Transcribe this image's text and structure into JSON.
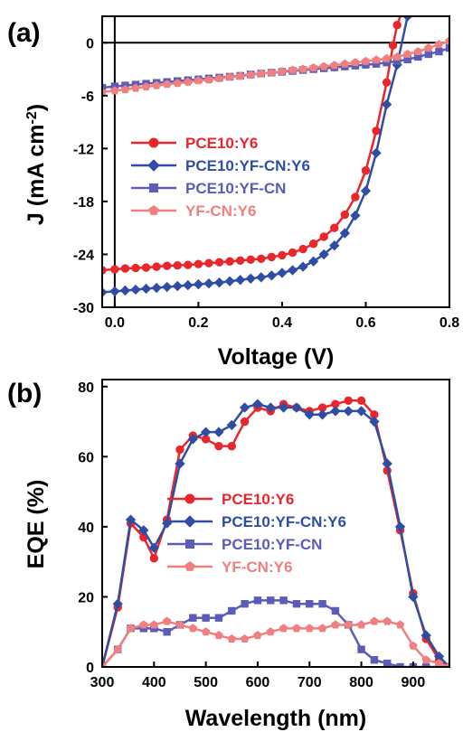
{
  "chart_data": [
    {
      "panel_label": "(a)",
      "type": "line",
      "xlabel": "Voltage (V)",
      "ylabel_main": "J (mA cm",
      "ylabel_sup": "-2",
      "ylabel_end": ")",
      "xlim": [
        -0.03,
        0.8
      ],
      "ylim": [
        -30,
        3
      ],
      "xticks": [
        0.0,
        0.2,
        0.4,
        0.6,
        0.8
      ],
      "xtick_labels": [
        "0.0",
        "0.2",
        "0.4",
        "0.6",
        "0.8"
      ],
      "yticks": [
        0,
        -6,
        -12,
        -18,
        -24,
        -30
      ],
      "ytick_labels": [
        "0",
        "-6",
        "-12",
        "-18",
        "-24",
        "-30"
      ],
      "zero_lines": true,
      "legend_position": "center-left",
      "series": [
        {
          "name": "PCE10:Y6",
          "color": "#e8262b",
          "marker": "circle",
          "x": [
            -0.03,
            0.0,
            0.025,
            0.05,
            0.075,
            0.1,
            0.125,
            0.15,
            0.175,
            0.2,
            0.225,
            0.25,
            0.275,
            0.3,
            0.325,
            0.35,
            0.375,
            0.4,
            0.425,
            0.45,
            0.475,
            0.5,
            0.525,
            0.55,
            0.575,
            0.6,
            0.625,
            0.65,
            0.665,
            0.675,
            0.69
          ],
          "y": [
            -25.8,
            -25.7,
            -25.6,
            -25.55,
            -25.5,
            -25.4,
            -25.3,
            -25.25,
            -25.2,
            -25.1,
            -25.0,
            -24.9,
            -24.8,
            -24.7,
            -24.6,
            -24.5,
            -24.3,
            -24.1,
            -23.8,
            -23.4,
            -22.8,
            -22.0,
            -21.0,
            -19.5,
            -17.5,
            -14.5,
            -10.0,
            -4.5,
            -0.3,
            2.0,
            4.0
          ]
        },
        {
          "name": "PCE10:YF-CN:Y6",
          "color": "#2f4ea3",
          "marker": "diamond",
          "x": [
            -0.03,
            0.0,
            0.025,
            0.05,
            0.075,
            0.1,
            0.125,
            0.15,
            0.175,
            0.2,
            0.225,
            0.25,
            0.275,
            0.3,
            0.325,
            0.35,
            0.375,
            0.4,
            0.425,
            0.45,
            0.475,
            0.5,
            0.525,
            0.55,
            0.575,
            0.6,
            0.625,
            0.65,
            0.675,
            0.7
          ],
          "y": [
            -28.3,
            -28.2,
            -28.1,
            -28.0,
            -27.9,
            -27.8,
            -27.7,
            -27.6,
            -27.5,
            -27.4,
            -27.3,
            -27.2,
            -27.05,
            -26.9,
            -26.75,
            -26.6,
            -26.4,
            -26.1,
            -25.8,
            -25.4,
            -24.8,
            -24.0,
            -23.0,
            -21.6,
            -19.6,
            -16.8,
            -12.5,
            -7.0,
            -2.5,
            3.0
          ]
        },
        {
          "name": "PCE10:YF-CN",
          "color": "#5b5bb8",
          "marker": "square",
          "x": [
            -0.03,
            0.0,
            0.025,
            0.05,
            0.075,
            0.1,
            0.125,
            0.15,
            0.175,
            0.2,
            0.225,
            0.25,
            0.275,
            0.3,
            0.325,
            0.35,
            0.375,
            0.4,
            0.425,
            0.45,
            0.475,
            0.5,
            0.525,
            0.55,
            0.575,
            0.6,
            0.625,
            0.65,
            0.675,
            0.7,
            0.725,
            0.75,
            0.775,
            0.8
          ],
          "y": [
            -5.1,
            -4.95,
            -4.85,
            -4.75,
            -4.65,
            -4.55,
            -4.45,
            -4.35,
            -4.25,
            -4.15,
            -4.05,
            -3.95,
            -3.85,
            -3.75,
            -3.6,
            -3.5,
            -3.4,
            -3.3,
            -3.2,
            -3.1,
            -3.0,
            -2.9,
            -2.8,
            -2.7,
            -2.6,
            -2.5,
            -2.4,
            -2.25,
            -2.1,
            -1.9,
            -1.6,
            -1.3,
            -1.0,
            -0.6
          ]
        },
        {
          "name": "YF-CN:Y6",
          "color": "#f07f7f",
          "marker": "pentagon",
          "x": [
            -0.03,
            0.0,
            0.025,
            0.05,
            0.075,
            0.1,
            0.125,
            0.15,
            0.175,
            0.2,
            0.225,
            0.25,
            0.275,
            0.3,
            0.325,
            0.35,
            0.375,
            0.4,
            0.425,
            0.45,
            0.475,
            0.5,
            0.525,
            0.55,
            0.575,
            0.6,
            0.625,
            0.65,
            0.675,
            0.7,
            0.725,
            0.75,
            0.775,
            0.8
          ],
          "y": [
            -5.6,
            -5.45,
            -5.3,
            -5.15,
            -5.0,
            -4.85,
            -4.7,
            -4.6,
            -4.45,
            -4.3,
            -4.2,
            -4.05,
            -3.9,
            -3.8,
            -3.65,
            -3.5,
            -3.4,
            -3.25,
            -3.1,
            -3.0,
            -2.85,
            -2.7,
            -2.55,
            -2.4,
            -2.25,
            -2.1,
            -1.95,
            -1.8,
            -1.6,
            -1.3,
            -1.0,
            -0.6,
            -0.2,
            0.2
          ]
        }
      ]
    },
    {
      "panel_label": "(b)",
      "type": "line",
      "xlabel": "Wavelength (nm)",
      "ylabel_main": "EQE (%)",
      "xlim": [
        300,
        970
      ],
      "ylim": [
        0,
        82
      ],
      "xticks": [
        300,
        400,
        500,
        600,
        700,
        800,
        900
      ],
      "xtick_labels": [
        "300",
        "400",
        "500",
        "600",
        "700",
        "800",
        "900"
      ],
      "yticks": [
        0,
        20,
        40,
        60,
        80
      ],
      "ytick_labels": [
        "0",
        "20",
        "40",
        "60",
        "80"
      ],
      "legend_position": "center-left",
      "series": [
        {
          "name": "PCE10:Y6",
          "color": "#e8262b",
          "marker": "circle",
          "x": [
            300,
            330,
            355,
            380,
            400,
            425,
            450,
            475,
            500,
            525,
            550,
            575,
            600,
            625,
            650,
            675,
            700,
            725,
            750,
            775,
            800,
            825,
            850,
            875,
            900,
            925,
            950,
            970
          ],
          "y": [
            0,
            17,
            41,
            37,
            31,
            42,
            62,
            66,
            65,
            63,
            63,
            70,
            74,
            73,
            75,
            74,
            73,
            74,
            75,
            76,
            76,
            72,
            56,
            39,
            21,
            8,
            2,
            0
          ]
        },
        {
          "name": "PCE10:YF-CN:Y6",
          "color": "#2f4ea3",
          "marker": "diamond",
          "x": [
            300,
            330,
            355,
            380,
            400,
            425,
            450,
            475,
            500,
            525,
            550,
            575,
            600,
            625,
            650,
            675,
            700,
            725,
            750,
            775,
            800,
            825,
            850,
            875,
            900,
            925,
            950,
            970
          ],
          "y": [
            0,
            18,
            42,
            39,
            34,
            41,
            58,
            65,
            67,
            67,
            69,
            74,
            75,
            74,
            74,
            74,
            72,
            72,
            73,
            73,
            73,
            70,
            58,
            40,
            20,
            9,
            3,
            0
          ]
        },
        {
          "name": "PCE10:YF-CN",
          "color": "#5b5bb8",
          "marker": "square",
          "x": [
            300,
            330,
            355,
            380,
            400,
            425,
            450,
            475,
            500,
            525,
            550,
            575,
            600,
            625,
            650,
            675,
            700,
            725,
            750,
            775,
            800,
            825,
            850,
            875,
            900,
            925,
            950,
            970
          ],
          "y": [
            0,
            5,
            11,
            11,
            11,
            10,
            12,
            14,
            14,
            14,
            16,
            18,
            19,
            19,
            19,
            18,
            18,
            18,
            16,
            12,
            5,
            2,
            1,
            0,
            0,
            0,
            0,
            0
          ]
        },
        {
          "name": "YF-CN:Y6",
          "color": "#f07f7f",
          "marker": "pentagon",
          "x": [
            300,
            330,
            355,
            380,
            400,
            425,
            450,
            475,
            500,
            525,
            550,
            575,
            600,
            625,
            650,
            675,
            700,
            725,
            750,
            775,
            800,
            825,
            850,
            875,
            900,
            925,
            950,
            970
          ],
          "y": [
            0,
            5,
            11,
            12,
            12,
            13,
            12,
            11,
            10,
            9,
            8,
            8,
            9,
            10,
            11,
            11,
            11,
            11,
            12,
            12,
            12,
            13,
            13,
            12,
            6,
            2,
            1,
            0
          ]
        }
      ]
    }
  ]
}
